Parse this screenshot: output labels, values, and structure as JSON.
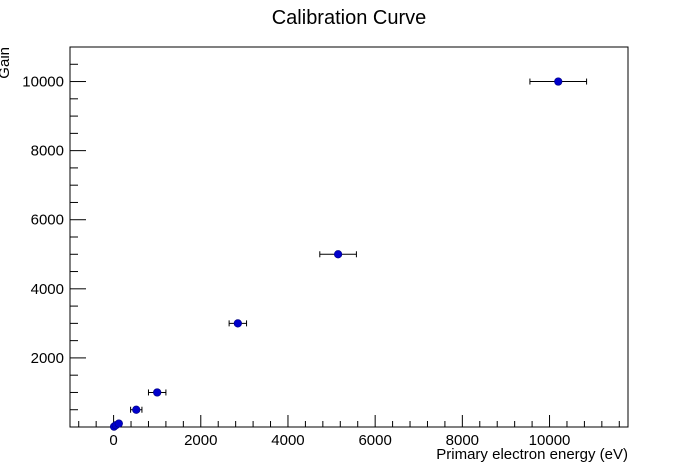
{
  "chart_data": {
    "type": "scatter",
    "title": "Calibration Curve",
    "xlabel": "Primary electron energy (eV)",
    "ylabel": "Gain",
    "xlim": [
      -1000,
      11800
    ],
    "ylim": [
      0,
      11000
    ],
    "x_ticks": [
      0,
      2000,
      4000,
      6000,
      8000,
      10000
    ],
    "y_ticks": [
      2000,
      4000,
      6000,
      8000,
      10000
    ],
    "x_minor_step": 400,
    "y_minor_step": 500,
    "grid": false,
    "marker_color": "#0000cc",
    "points": [
      {
        "x": 10,
        "y": 10,
        "xerr": 30
      },
      {
        "x": 50,
        "y": 50,
        "xerr": 30
      },
      {
        "x": 120,
        "y": 100,
        "xerr": 40
      },
      {
        "x": 520,
        "y": 500,
        "xerr": 130
      },
      {
        "x": 1000,
        "y": 1000,
        "xerr": 200
      },
      {
        "x": 2850,
        "y": 3000,
        "xerr": 200
      },
      {
        "x": 5150,
        "y": 5000,
        "xerr": 420
      },
      {
        "x": 10200,
        "y": 10000,
        "xerr": 650
      }
    ]
  }
}
